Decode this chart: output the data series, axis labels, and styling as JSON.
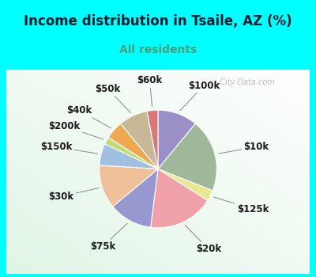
{
  "title": "Income distribution in Tsaile, AZ (%)",
  "subtitle": "All residents",
  "title_color": "#1a1a2e",
  "subtitle_color": "#4a9e7a",
  "bg_outer": "#00ffff",
  "labels": [
    "$100k",
    "$10k",
    "$125k",
    "$20k",
    "$75k",
    "$30k",
    "$150k",
    "$200k",
    "$40k",
    "$50k",
    "$60k"
  ],
  "values": [
    11,
    20,
    3,
    18,
    12,
    12,
    6,
    2,
    5,
    8,
    3
  ],
  "colors": [
    "#9b8fc8",
    "#a0b89a",
    "#e8e890",
    "#f0a0a8",
    "#9898d0",
    "#f0c098",
    "#a0c0e0",
    "#c0dc78",
    "#f0a850",
    "#c8b898",
    "#d87878"
  ],
  "label_fontsize": 8.5,
  "title_fontsize": 12,
  "subtitle_fontsize": 10,
  "startangle": 90,
  "watermark": "  City-Data.com"
}
